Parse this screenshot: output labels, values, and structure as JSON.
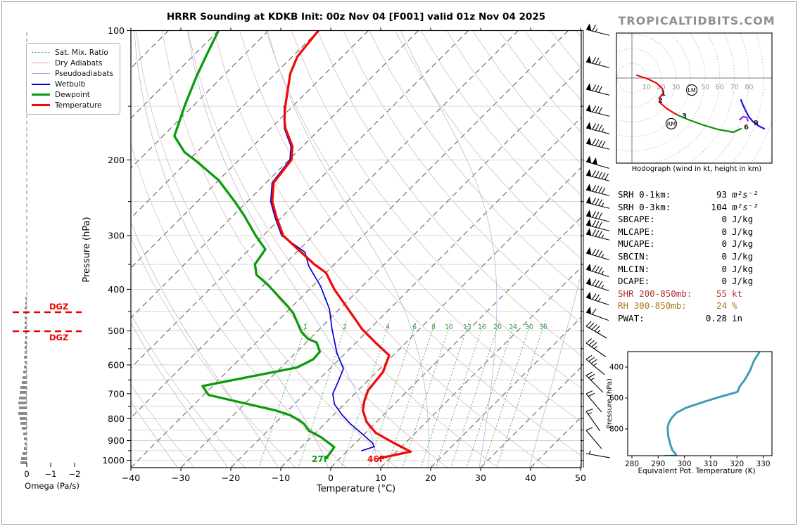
{
  "branding": "TROPICALTIDBITS.COM",
  "title": "HRRR Sounding at KDKB Init: 00z Nov 04 [F001] valid 01z Nov 04 2025",
  "legend": {
    "items": [
      {
        "label": "Sat. Mix. Ratio"
      },
      {
        "label": "Dry Adiabats"
      },
      {
        "label": "Pseudoadiabats"
      },
      {
        "label": "Wetbulb"
      },
      {
        "label": "Dewpoint"
      },
      {
        "label": "Temperature"
      }
    ]
  },
  "axes": {
    "pressure_label": "Pressure (hPa)",
    "temp_label": "Temperature (°C)",
    "pressure_ticks": [
      100,
      200,
      300,
      400,
      500,
      600,
      700,
      800,
      900,
      1000
    ],
    "temp_ticks": [
      {
        "v": -40,
        "t": "−40"
      },
      {
        "v": -30,
        "t": "−30"
      },
      {
        "v": -20,
        "t": "−20"
      },
      {
        "v": -10,
        "t": "−10"
      },
      {
        "v": 0,
        "t": "0"
      },
      {
        "v": 10,
        "t": "10"
      },
      {
        "v": 20,
        "t": "20"
      },
      {
        "v": 30,
        "t": "30"
      },
      {
        "v": 40,
        "t": "40"
      },
      {
        "v": 50,
        "t": "50"
      }
    ],
    "omega_label": "Omega (Pa/s)",
    "omega_ticks": [
      {
        "x": 38,
        "t": "0"
      },
      {
        "x": 72,
        "t": "−1"
      },
      {
        "x": 106,
        "t": "−2"
      }
    ]
  },
  "surface_labels": {
    "dewpoint_f": "27F",
    "temp_f": "46F"
  },
  "dgz": {
    "label": "DGZ",
    "levels_y": [
      444,
      471
    ]
  },
  "mixing_ratio_labels": [
    {
      "v": "1",
      "x": 434
    },
    {
      "v": "2",
      "x": 490
    },
    {
      "v": "4",
      "x": 551
    },
    {
      "v": "6",
      "x": 589
    },
    {
      "v": "8",
      "x": 616
    },
    {
      "v": "10",
      "x": 638
    },
    {
      "v": "13",
      "x": 664
    },
    {
      "v": "16",
      "x": 685
    },
    {
      "v": "20",
      "x": 707
    },
    {
      "v": "24",
      "x": 729
    },
    {
      "v": "30",
      "x": 752
    },
    {
      "v": "36",
      "x": 772
    }
  ],
  "stats": {
    "rows": [
      {
        "label": "SRH 0-1km:",
        "value": "93",
        "unit": "m²s⁻²",
        "style": "plain"
      },
      {
        "label": "SRH 0-3km:",
        "value": "104",
        "unit": "m²s⁻²",
        "style": "plain"
      },
      {
        "label": "SBCAPE:",
        "value": "0",
        "unit": "J/kg",
        "style": "plain"
      },
      {
        "label": "MLCAPE:",
        "value": "0",
        "unit": "J/kg",
        "style": "plain"
      },
      {
        "label": "MUCAPE:",
        "value": "0",
        "unit": "J/kg",
        "style": "plain"
      },
      {
        "label": "SBCIN:",
        "value": "0",
        "unit": "J/kg",
        "style": "plain"
      },
      {
        "label": "MLCIN:",
        "value": "0",
        "unit": "J/kg",
        "style": "plain"
      },
      {
        "label": "DCAPE:",
        "value": "0",
        "unit": "J/kg",
        "style": "plain"
      },
      {
        "label": "SHR 200-850mb:",
        "value": "55",
        "unit": "kt",
        "style": "shear"
      },
      {
        "label": "RH 300-850mb:",
        "value": "24",
        "unit": "%",
        "style": "rh"
      },
      {
        "label": "PWAT:",
        "value": "0.28",
        "unit": "in",
        "style": "plain"
      }
    ]
  },
  "hodograph": {
    "caption": "Hodograph (wind in kt, height in km)",
    "ring_step_kt": 10,
    "ring_labels": [
      "10",
      "20",
      "30",
      "40",
      "50",
      "60",
      "70",
      "80"
    ],
    "height_labels": [
      {
        "t": "1",
        "u": 18.3,
        "v": 10.6
      },
      {
        "t": "2",
        "u": 16.3,
        "v": 15.4
      },
      {
        "t": "3",
        "u": 32.7,
        "v": 26.0
      },
      {
        "t": "6",
        "u": 75.0,
        "v": 33.7
      },
      {
        "t": "9",
        "u": 81.7,
        "v": 30.8
      }
    ],
    "markers": [
      {
        "t": "LM",
        "u": 40.9,
        "v": 8.2
      },
      {
        "t": "RM",
        "u": 26.9,
        "v": 31.2
      }
    ]
  },
  "thetae_panel": {
    "xlabel": "Equivalent Pot. Temperature (K)",
    "ylabel": "Pressure (hPa)",
    "xticks": [
      280,
      290,
      300,
      310,
      320,
      330
    ],
    "yticks": [
      400,
      600,
      800
    ]
  },
  "chart_data": [
    {
      "type": "line",
      "name": "skewt_sounding",
      "xlabel": "Temperature (°C)",
      "ylabel": "Pressure (hPa)",
      "xlim": [
        -40,
        50
      ],
      "ylim_hpa": [
        100,
        1050
      ],
      "skew_deg": 45,
      "series": [
        {
          "name": "Temperature",
          "color": "#f10a0a",
          "points_p_t": [
            [
              100,
              -90
            ],
            [
              115,
              -89
            ],
            [
              126,
              -87
            ],
            [
              150,
              -81.5
            ],
            [
              161,
              -79
            ],
            [
              169,
              -77
            ],
            [
              186,
              -72
            ],
            [
              200,
              -69.5
            ],
            [
              226,
              -68.5
            ],
            [
              250,
              -65
            ],
            [
              272,
              -61
            ],
            [
              300,
              -56
            ],
            [
              320,
              -51
            ],
            [
              350,
              -44
            ],
            [
              366,
              -40
            ],
            [
              400,
              -35
            ],
            [
              472,
              -24.5
            ],
            [
              495,
              -21.5
            ],
            [
              533,
              -16
            ],
            [
              570,
              -10.8
            ],
            [
              623,
              -8.7
            ],
            [
              688,
              -8
            ],
            [
              731,
              -6.5
            ],
            [
              766,
              -5
            ],
            [
              814,
              -2
            ],
            [
              863,
              2
            ],
            [
              910,
              7.5
            ],
            [
              955,
              12.8
            ],
            [
              990,
              7.8
            ]
          ]
        },
        {
          "name": "Dewpoint",
          "color": "#0b9b0b",
          "points_p_t": [
            [
              100,
              -110
            ],
            [
              114,
              -107.5
            ],
            [
              128,
              -105.2
            ],
            [
              149,
              -101.8
            ],
            [
              176,
              -97.7
            ],
            [
              192,
              -92.4
            ],
            [
              202,
              -88
            ],
            [
              223,
              -80
            ],
            [
              250,
              -72.5
            ],
            [
              270,
              -67.7
            ],
            [
              301,
              -61.3
            ],
            [
              323,
              -56.8
            ],
            [
              350,
              -55.9
            ],
            [
              370,
              -53.5
            ],
            [
              390,
              -49.3
            ],
            [
              439,
              -40.8
            ],
            [
              455,
              -38.4
            ],
            [
              503,
              -33
            ],
            [
              522,
              -30.3
            ],
            [
              532,
              -27.9
            ],
            [
              559,
              -25.4
            ],
            [
              582,
              -25.2
            ],
            [
              608,
              -26.8
            ],
            [
              672,
              -42
            ],
            [
              705,
              -39
            ],
            [
              766,
              -22.4
            ],
            [
              786,
              -18.6
            ],
            [
              806,
              -15.9
            ],
            [
              823,
              -14.1
            ],
            [
              853,
              -11.8
            ],
            [
              884,
              -8
            ],
            [
              932,
              -3.4
            ],
            [
              985,
              -2.8
            ]
          ]
        },
        {
          "name": "Wetbulb",
          "color": "#0000d0",
          "points_p_t": [
            [
              150,
              -81.7
            ],
            [
              169,
              -77.2
            ],
            [
              186,
              -72.3
            ],
            [
              200,
              -69.8
            ],
            [
              226,
              -68.8
            ],
            [
              250,
              -65.3
            ],
            [
              272,
              -61.3
            ],
            [
              300,
              -56.3
            ],
            [
              328,
              -48.3
            ],
            [
              353,
              -44.8
            ],
            [
              394,
              -38.3
            ],
            [
              445,
              -32
            ],
            [
              495,
              -27.5
            ],
            [
              514,
              -25.8
            ],
            [
              562,
              -21.8
            ],
            [
              612,
              -17.3
            ],
            [
              660,
              -15.6
            ],
            [
              700,
              -14.4
            ],
            [
              740,
              -12
            ],
            [
              782,
              -8.5
            ],
            [
              822,
              -4.9
            ],
            [
              870,
              -0.3
            ],
            [
              913,
              3.5
            ],
            [
              930,
              4.5
            ],
            [
              950,
              2.8
            ]
          ]
        }
      ]
    },
    {
      "type": "line",
      "name": "hodograph",
      "units": "kt",
      "segments": [
        {
          "layer": "0-3km",
          "color": "#f10a0a",
          "points_uv": [
            [
              3.4,
              -1.9
            ],
            [
              10.6,
              0.5
            ],
            [
              16.8,
              3.4
            ],
            [
              20.7,
              7.2
            ],
            [
              21.6,
              10.1
            ],
            [
              18.8,
              13.5
            ],
            [
              19.2,
              16.8
            ],
            [
              23.6,
              20.7
            ],
            [
              28.8,
              24.0
            ],
            [
              31.7,
              25.5
            ]
          ]
        },
        {
          "layer": "3-6km",
          "color": "#0b8f0b",
          "points_uv": [
            [
              31.7,
              25.5
            ],
            [
              39.4,
              28.8
            ],
            [
              49.0,
              32.2
            ],
            [
              58.7,
              35.1
            ],
            [
              69.2,
              37.0
            ],
            [
              74.5,
              34.6
            ]
          ]
        },
        {
          "layer": "6-9km",
          "color": "#1414e6",
          "points_uv": [
            [
              74.5,
              14.9
            ],
            [
              76.0,
              18.8
            ],
            [
              77.9,
              22.6
            ],
            [
              79.8,
              26.4
            ],
            [
              82.7,
              29.8
            ],
            [
              86.5,
              32.7
            ],
            [
              90.4,
              34.6
            ]
          ]
        },
        {
          "layer": "9km+",
          "color": "#9933cc",
          "points_uv": [
            [
              73.6,
              28.4
            ],
            [
              76.0,
              26.4
            ],
            [
              78.4,
              26.9
            ],
            [
              79.3,
              29.3
            ]
          ]
        }
      ]
    },
    {
      "type": "line",
      "name": "equivalent_potential_temperature",
      "color": "#3f9db3",
      "xlabel": "Equivalent Pot. Temperature (K)",
      "xlim": [
        280,
        330
      ],
      "points_p_thetae": [
        [
          305,
          328.5
        ],
        [
          359,
          326.5
        ],
        [
          423,
          325
        ],
        [
          482,
          323
        ],
        [
          527,
          321
        ],
        [
          559,
          320.3
        ],
        [
          564,
          319.5
        ],
        [
          595,
          313
        ],
        [
          627,
          307
        ],
        [
          664,
          300.5
        ],
        [
          695,
          297
        ],
        [
          732,
          295
        ],
        [
          755,
          294.2
        ],
        [
          791,
          293.6
        ],
        [
          845,
          293.8
        ],
        [
          900,
          294.6
        ],
        [
          936,
          295.4
        ],
        [
          959,
          296.6
        ],
        [
          973,
          296.8
        ],
        [
          975,
          292.5
        ]
      ]
    },
    {
      "type": "bar",
      "name": "omega",
      "xlabel": "Omega (Pa/s)",
      "bars_y_w": [
        [
          424,
          2
        ],
        [
          431,
          2
        ],
        [
          438,
          3
        ],
        [
          445,
          2
        ],
        [
          452,
          3
        ],
        [
          459,
          3
        ],
        [
          466,
          3
        ],
        [
          473,
          2
        ],
        [
          480,
          2
        ],
        [
          487,
          3
        ],
        [
          494,
          3
        ],
        [
          501,
          3
        ],
        [
          508,
          4
        ],
        [
          515,
          3
        ],
        [
          522,
          4
        ],
        [
          529,
          5
        ],
        [
          537,
          6
        ],
        [
          544,
          7
        ],
        [
          551,
          9
        ],
        [
          558,
          10
        ],
        [
          566,
          11
        ],
        [
          573,
          12
        ],
        [
          580,
          11
        ],
        [
          588,
          12
        ],
        [
          595,
          10
        ],
        [
          602,
          9
        ],
        [
          609,
          7
        ],
        [
          617,
          5
        ],
        [
          624,
          4
        ],
        [
          631,
          3
        ],
        [
          638,
          4
        ],
        [
          645,
          6
        ],
        [
          652,
          8
        ],
        [
          658,
          9
        ]
      ]
    }
  ],
  "wind_barbs": [
    {
      "y": 42,
      "rot": 14,
      "flags": 1,
      "barbs": 1,
      "half": 1
    },
    {
      "y": 88,
      "rot": 14,
      "flags": 1,
      "barbs": 2,
      "half": 1
    },
    {
      "y": 127,
      "rot": 14,
      "flags": 1,
      "barbs": 3,
      "half": 0
    },
    {
      "y": 157,
      "rot": 14,
      "flags": 1,
      "barbs": 3,
      "half": 0
    },
    {
      "y": 182,
      "rot": 14,
      "flags": 1,
      "barbs": 3,
      "half": 1
    },
    {
      "y": 204,
      "rot": 14,
      "flags": 1,
      "barbs": 4,
      "half": 0
    },
    {
      "y": 230,
      "rot": 16,
      "flags": 2,
      "barbs": 0,
      "half": 0
    },
    {
      "y": 249,
      "rot": 14,
      "flags": 1,
      "barbs": 5,
      "half": 0
    },
    {
      "y": 270,
      "rot": 14,
      "flags": 1,
      "barbs": 4,
      "half": 0
    },
    {
      "y": 288,
      "rot": 14,
      "flags": 1,
      "barbs": 3,
      "half": 1
    },
    {
      "y": 307,
      "rot": 14,
      "flags": 1,
      "barbs": 3,
      "half": 0
    },
    {
      "y": 320,
      "rot": 14,
      "flags": 1,
      "barbs": 3,
      "half": 0
    },
    {
      "y": 333,
      "rot": 14,
      "flags": 1,
      "barbs": 3,
      "half": 1
    },
    {
      "y": 360,
      "rot": 16,
      "flags": 1,
      "barbs": 3,
      "half": 1
    },
    {
      "y": 383,
      "rot": 18,
      "flags": 1,
      "barbs": 3,
      "half": 1
    },
    {
      "y": 403,
      "rot": 18,
      "flags": 1,
      "barbs": 3,
      "half": 1
    },
    {
      "y": 423,
      "rot": 18,
      "flags": 1,
      "barbs": 2,
      "half": 1
    },
    {
      "y": 444,
      "rot": 20,
      "flags": 1,
      "barbs": 1,
      "half": 0
    },
    {
      "y": 464,
      "rot": 30,
      "flags": 0,
      "barbs": 4,
      "half": 1
    },
    {
      "y": 488,
      "rot": 35,
      "flags": 0,
      "barbs": 3,
      "half": 1
    },
    {
      "y": 511,
      "rot": 40,
      "flags": 0,
      "barbs": 3,
      "half": 1
    },
    {
      "y": 534,
      "rot": 45,
      "flags": 0,
      "barbs": 2,
      "half": 1
    },
    {
      "y": 560,
      "rot": 50,
      "flags": 0,
      "barbs": 2,
      "half": 0
    },
    {
      "y": 585,
      "rot": 55,
      "flags": 0,
      "barbs": 1,
      "half": 1
    },
    {
      "y": 612,
      "rot": 50,
      "flags": 0,
      "barbs": 1,
      "half": 0
    },
    {
      "y": 645,
      "rot": 10,
      "flags": 0,
      "barbs": 0,
      "half": 1
    }
  ],
  "colors": {
    "temperature": "#f10a0a",
    "dewpoint": "#0b9b0b",
    "wetbulb": "#0000d0",
    "dry_adiabat": "#e4b6b6",
    "pseudoadiabat": "#b3b7e6",
    "sat_mix_ratio": "#3f9d4f",
    "isotherm": "#595959",
    "grid": "#cccccc",
    "thetae": "#3f9db3",
    "dgz": "#e80000",
    "omega_bar": "#8c8c8c",
    "branding": "#8f8f8f",
    "stat_shear": "#b03030",
    "stat_rh": "#a67817"
  }
}
